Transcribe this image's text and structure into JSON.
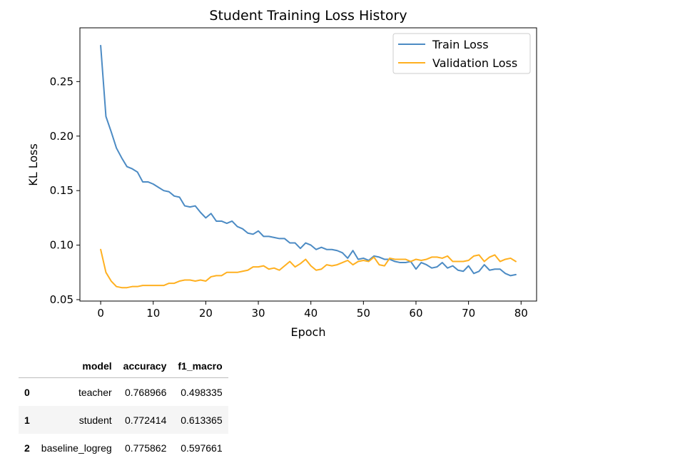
{
  "chart_data": {
    "type": "line",
    "title": "Student Training Loss History",
    "xlabel": "Epoch",
    "ylabel": "KL Loss",
    "xlim": [
      -3.95,
      82.95
    ],
    "ylim": [
      0.0487,
      0.2993
    ],
    "xticks": [
      0,
      10,
      20,
      30,
      40,
      50,
      60,
      70,
      80
    ],
    "yticks": [
      0.05,
      0.1,
      0.15,
      0.2,
      0.25
    ],
    "ytick_labels": [
      "0.05",
      "0.10",
      "0.15",
      "0.20",
      "0.25"
    ],
    "grid": false,
    "legend_position": "top-right",
    "x": [
      0,
      1,
      2,
      3,
      4,
      5,
      6,
      7,
      8,
      9,
      10,
      11,
      12,
      13,
      14,
      15,
      16,
      17,
      18,
      19,
      20,
      21,
      22,
      23,
      24,
      25,
      26,
      27,
      28,
      29,
      30,
      31,
      32,
      33,
      34,
      35,
      36,
      37,
      38,
      39,
      40,
      41,
      42,
      43,
      44,
      45,
      46,
      47,
      48,
      49,
      50,
      51,
      52,
      53,
      54,
      55,
      56,
      57,
      58,
      59,
      60,
      61,
      62,
      63,
      64,
      65,
      66,
      67,
      68,
      69,
      70,
      71,
      72,
      73,
      74,
      75,
      76,
      77,
      78,
      79
    ],
    "series": [
      {
        "name": "Train Loss",
        "color": "#4c8bc4",
        "values": [
          0.283,
          0.218,
          0.204,
          0.189,
          0.18,
          0.172,
          0.17,
          0.167,
          0.158,
          0.158,
          0.156,
          0.153,
          0.15,
          0.149,
          0.145,
          0.144,
          0.136,
          0.135,
          0.136,
          0.13,
          0.125,
          0.129,
          0.122,
          0.122,
          0.12,
          0.122,
          0.117,
          0.115,
          0.111,
          0.11,
          0.113,
          0.108,
          0.108,
          0.107,
          0.106,
          0.106,
          0.102,
          0.102,
          0.097,
          0.102,
          0.1,
          0.096,
          0.098,
          0.096,
          0.096,
          0.095,
          0.093,
          0.088,
          0.095,
          0.087,
          0.088,
          0.086,
          0.09,
          0.089,
          0.087,
          0.087,
          0.085,
          0.084,
          0.084,
          0.085,
          0.078,
          0.084,
          0.082,
          0.079,
          0.08,
          0.084,
          0.079,
          0.081,
          0.077,
          0.076,
          0.081,
          0.074,
          0.076,
          0.082,
          0.077,
          0.078,
          0.078,
          0.074,
          0.072,
          0.073
        ]
      },
      {
        "name": "Validation Loss",
        "color": "#ffb020",
        "values": [
          0.096,
          0.075,
          0.067,
          0.062,
          0.061,
          0.061,
          0.062,
          0.062,
          0.063,
          0.063,
          0.063,
          0.063,
          0.063,
          0.065,
          0.065,
          0.067,
          0.068,
          0.068,
          0.067,
          0.068,
          0.067,
          0.071,
          0.072,
          0.072,
          0.075,
          0.075,
          0.075,
          0.076,
          0.077,
          0.08,
          0.08,
          0.081,
          0.078,
          0.079,
          0.077,
          0.081,
          0.085,
          0.08,
          0.083,
          0.087,
          0.081,
          0.077,
          0.078,
          0.082,
          0.081,
          0.082,
          0.084,
          0.086,
          0.082,
          0.085,
          0.086,
          0.085,
          0.089,
          0.082,
          0.081,
          0.088,
          0.087,
          0.087,
          0.087,
          0.085,
          0.087,
          0.086,
          0.087,
          0.089,
          0.089,
          0.088,
          0.09,
          0.085,
          0.085,
          0.085,
          0.086,
          0.09,
          0.091,
          0.085,
          0.089,
          0.091,
          0.085,
          0.087,
          0.088,
          0.085
        ]
      }
    ]
  },
  "table": {
    "columns": [
      "",
      "model",
      "accuracy",
      "f1_macro"
    ],
    "rows": [
      {
        "index": "0",
        "model": "teacher",
        "accuracy": "0.768966",
        "f1_macro": "0.498335"
      },
      {
        "index": "1",
        "model": "student",
        "accuracy": "0.772414",
        "f1_macro": "0.613365"
      },
      {
        "index": "2",
        "model": "baseline_logreg",
        "accuracy": "0.775862",
        "f1_macro": "0.597661"
      }
    ]
  }
}
